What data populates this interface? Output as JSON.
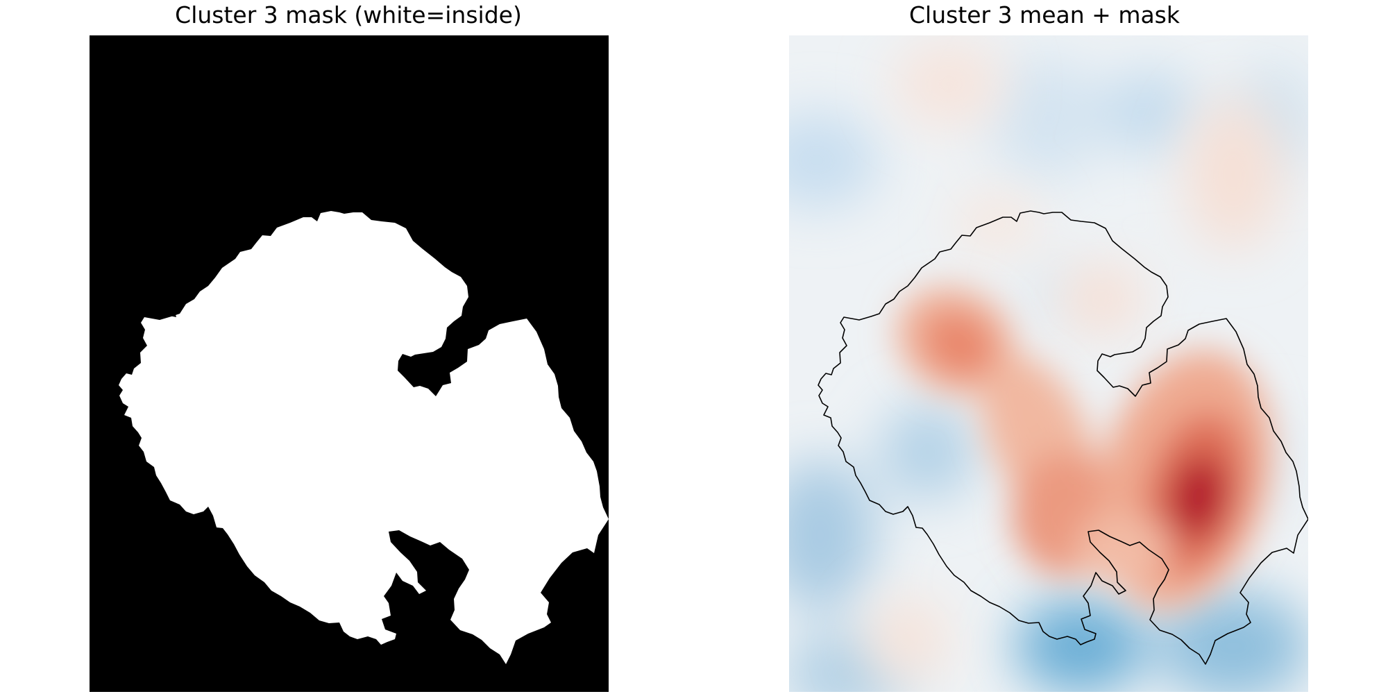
{
  "figure": {
    "panels": [
      {
        "title": "Cluster 3 mask (white=inside)"
      },
      {
        "title": "Cluster 3 mean + mask"
      }
    ]
  },
  "colors": {
    "mask_inside": "#ffffff",
    "mask_outside": "#000000",
    "contour": "#000000",
    "colormap": "RdBu_r",
    "colormap_red_peak": "#b2182b",
    "colormap_blue_peak": "#6aaed6"
  }
}
